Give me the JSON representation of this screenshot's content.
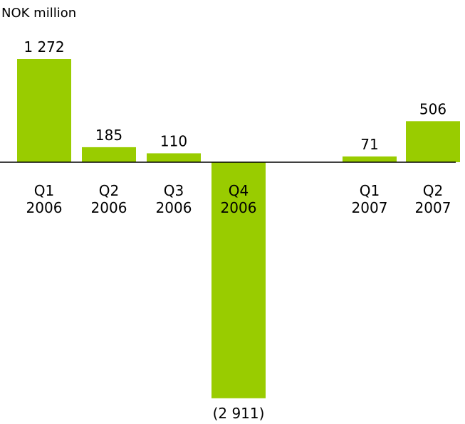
{
  "chart_data": {
    "type": "bar",
    "unit_label": "NOK million",
    "categories": [
      [
        "Q1",
        "2006"
      ],
      [
        "Q2",
        "2006"
      ],
      [
        "Q3",
        "2006"
      ],
      [
        "Q4",
        "2006"
      ],
      [
        "Q1",
        "2007"
      ],
      [
        "Q2",
        "2007"
      ]
    ],
    "values": [
      1272,
      185,
      110,
      -2911,
      71,
      506
    ],
    "value_labels": [
      "1 272",
      "185",
      "110",
      "(2 911)",
      "71",
      "506"
    ],
    "bar_color": "#99cc00",
    "baseline_color": "#000000",
    "grid": false,
    "ylim": [
      -2911,
      1272
    ]
  }
}
